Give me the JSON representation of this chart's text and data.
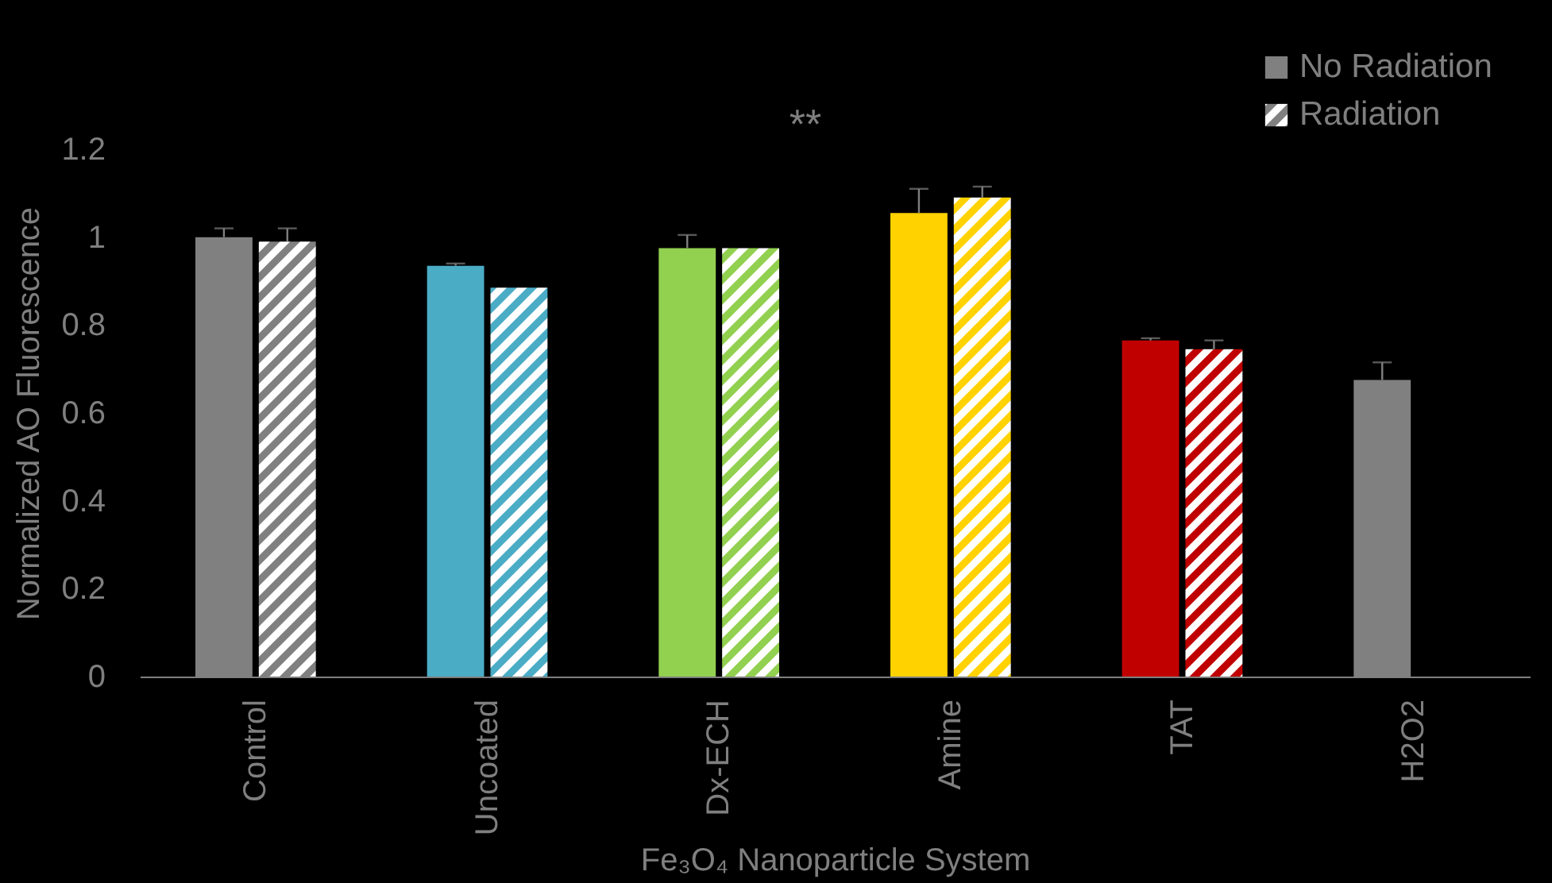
{
  "chart_data": {
    "type": "bar",
    "xlabel": "Fe₃O₄ Nanoparticle System",
    "ylabel": "Normalized AO Fluorescence",
    "categories": [
      "Control",
      "Uncoated",
      "Dx-ECH",
      "Amine",
      "TAT",
      "H2O2"
    ],
    "series": [
      {
        "name": "No Radiation",
        "colors": [
          "#808080",
          "#4bacc6",
          "#92d050",
          "#ffd200",
          "#c00000",
          "#808080"
        ],
        "values": [
          1.0,
          0.935,
          0.975,
          1.055,
          0.765,
          0.675
        ],
        "errors": [
          [
            1.0,
            1.02
          ],
          [
            0.935,
            0.94
          ],
          [
            0.975,
            1.005
          ],
          [
            1.055,
            1.11
          ],
          [
            0.765,
            0.77
          ],
          [
            0.675,
            0.715
          ]
        ]
      },
      {
        "name": "Radiation",
        "colors": [
          "#808080",
          "#4bacc6",
          "#92d050",
          "#ffd200",
          "#c00000",
          null
        ],
        "values": [
          0.99,
          0.885,
          0.975,
          1.09,
          0.745,
          null
        ],
        "errors": [
          [
            0.99,
            1.02
          ],
          null,
          null,
          [
            1.09,
            1.115
          ],
          [
            0.745,
            0.765
          ],
          null
        ]
      }
    ],
    "ylim": [
      0,
      1.2
    ],
    "yticks": [
      0,
      0.2,
      0.4,
      0.6,
      0.8,
      1,
      1.2
    ],
    "annotations": [
      "**"
    ],
    "grid": false,
    "legend": "top right"
  }
}
